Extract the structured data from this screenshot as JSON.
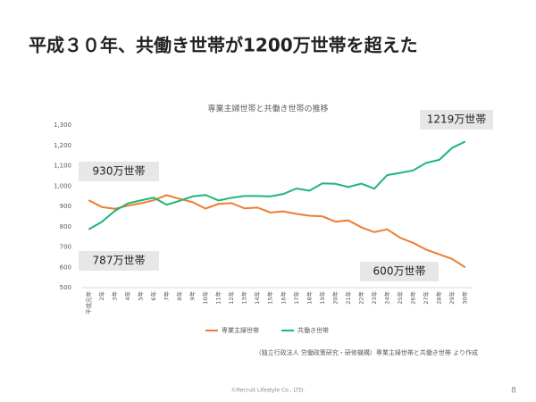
{
  "slide": {
    "title": "平成３０年、共働き世帯が1200万世帯を超えた",
    "source": "（独立行政法人 労働政策研究・研修機構）専業主婦世帯と共働き世帯 より作成",
    "footer": "©Recruit Lifestyle Co., LTD.",
    "page": "8"
  },
  "chart_data": {
    "type": "line",
    "title": "専業主婦世帯と共働き世帯の推移",
    "categories": [
      "平成元年",
      "2年",
      "3年",
      "4年",
      "5年",
      "6年",
      "7年",
      "8年",
      "9年",
      "10年",
      "11年",
      "12年",
      "13年",
      "14年",
      "15年",
      "16年",
      "17年",
      "18年",
      "19年",
      "20年",
      "21年",
      "22年",
      "23年",
      "24年",
      "25年",
      "26年",
      "27年",
      "28年",
      "29年",
      "30年"
    ],
    "series": [
      {
        "name": "専業主婦世帯",
        "color": "#ed7d31",
        "values": [
          930,
          897,
          888,
          903,
          915,
          930,
          955,
          937,
          921,
          889,
          912,
          916,
          890,
          894,
          870,
          875,
          863,
          854,
          851,
          825,
          831,
          797,
          773,
          787,
          745,
          720,
          687,
          664,
          641,
          600
        ]
      },
      {
        "name": "共働き世帯",
        "color": "#1fb57a",
        "values": [
          787,
          823,
          877,
          914,
          929,
          943,
          908,
          927,
          949,
          956,
          929,
          942,
          951,
          951,
          949,
          961,
          988,
          977,
          1013,
          1011,
          995,
          1012,
          987,
          1054,
          1065,
          1077,
          1114,
          1129,
          1188,
          1219
        ]
      }
    ],
    "ylim": [
      500,
      1300
    ],
    "yticks": [
      500,
      600,
      700,
      800,
      900,
      {
        "value": 1000,
        "label": "1,000"
      },
      {
        "value": 1100,
        "label": "1,100"
      },
      {
        "value": 1200,
        "label": "1,200"
      },
      {
        "value": 1300,
        "label": "1,300"
      }
    ],
    "grid": false,
    "legend": "bottom",
    "annotations": [
      "930万世帯",
      "787万世帯",
      "1219万世帯",
      "600万世帯"
    ]
  }
}
